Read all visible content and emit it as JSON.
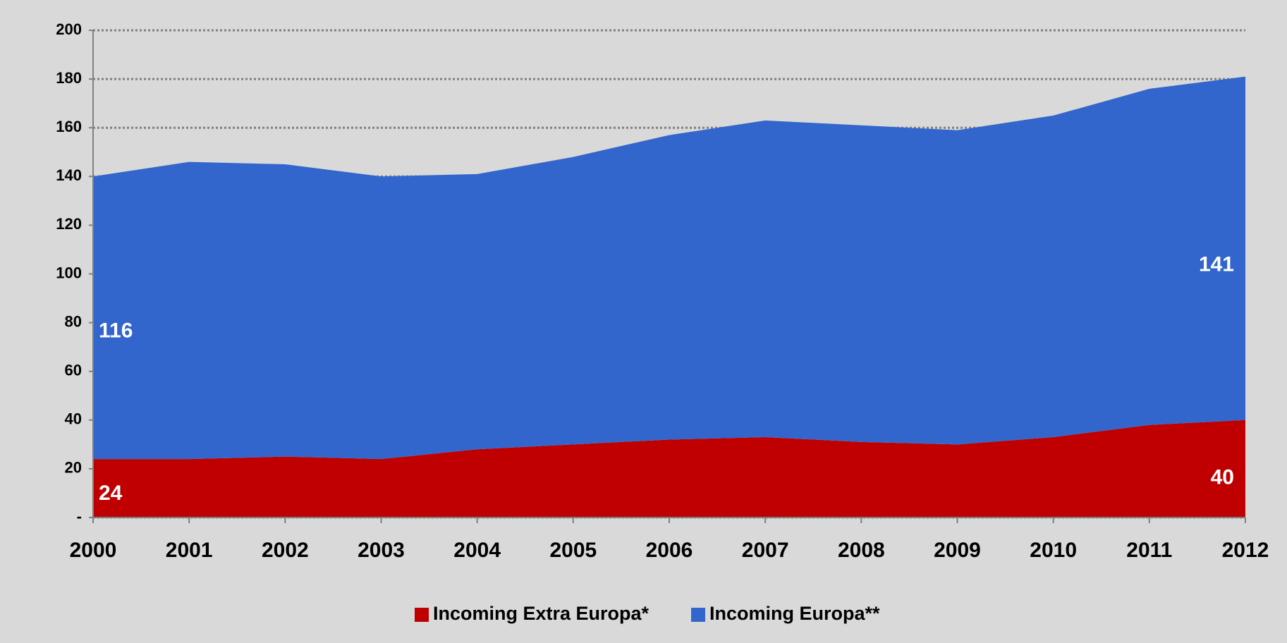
{
  "chart_data": {
    "type": "stacked_area",
    "categories": [
      "2000",
      "2001",
      "2002",
      "2003",
      "2004",
      "2005",
      "2006",
      "2007",
      "2008",
      "2009",
      "2010",
      "2011",
      "2012"
    ],
    "series": [
      {
        "name": "Incoming Extra Europa*",
        "color": "#c00000",
        "values": [
          24,
          24,
          25,
          24,
          28,
          30,
          32,
          33,
          31,
          30,
          33,
          38,
          40
        ],
        "value_labels": [
          "24",
          null,
          null,
          null,
          null,
          null,
          null,
          null,
          null,
          null,
          null,
          null,
          "40"
        ]
      },
      {
        "name": "Incoming Europa**",
        "color": "#3366cc",
        "values": [
          116,
          122,
          120,
          116,
          113,
          118,
          125,
          130,
          130,
          129,
          132,
          138,
          141
        ],
        "value_labels": [
          "116",
          null,
          null,
          null,
          null,
          null,
          null,
          null,
          null,
          null,
          null,
          null,
          "141"
        ]
      }
    ],
    "ylim": [
      0,
      200
    ],
    "yticks": [
      {
        "value": 0,
        "label": "-"
      },
      20,
      40,
      60,
      80,
      100,
      120,
      140,
      160,
      180,
      200
    ],
    "grid": true,
    "legend": "bottom"
  }
}
